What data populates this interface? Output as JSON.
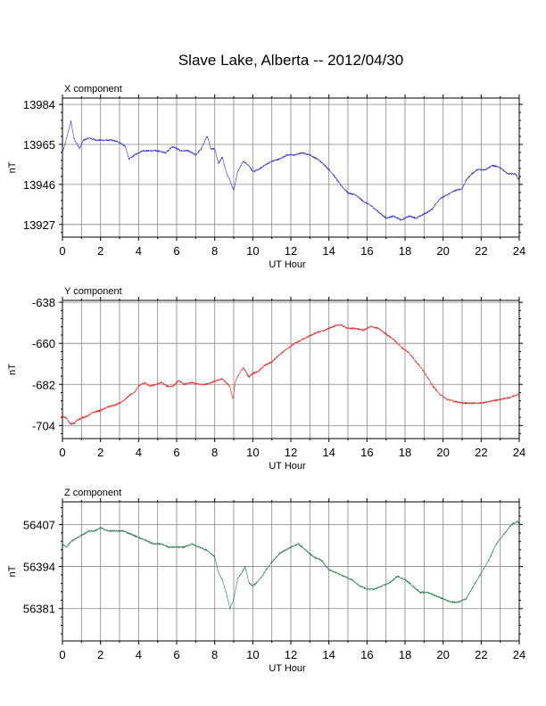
{
  "title": "Slave Lake, Alberta -- 2012/04/30",
  "colors": {
    "x": "#3333cc",
    "y": "#ee2222",
    "z": "#2e7d4f",
    "grid": "#888888"
  },
  "chart_data": [
    {
      "type": "line",
      "title": "X component",
      "xlabel": "UT Hour",
      "ylabel": "nT",
      "xlim": [
        0,
        24
      ],
      "ylim": [
        13921,
        13987
      ],
      "xticks": [
        0,
        2,
        4,
        6,
        8,
        10,
        12,
        14,
        16,
        18,
        20,
        22,
        24
      ],
      "yticks": [
        13927,
        13946,
        13965,
        13984
      ],
      "grid": true,
      "series": [
        {
          "color": "x",
          "x": [
            0,
            0.1,
            0.3,
            0.45,
            0.6,
            0.9,
            1.1,
            1.4,
            1.8,
            2.2,
            2.6,
            3.0,
            3.3,
            3.5,
            3.8,
            4.2,
            4.6,
            5.0,
            5.4,
            5.8,
            6.2,
            6.6,
            7.0,
            7.3,
            7.6,
            7.8,
            8.0,
            8.2,
            8.4,
            8.6,
            8.8,
            9.0,
            9.2,
            9.5,
            9.8,
            10.0,
            10.3,
            10.6,
            11.0,
            11.4,
            11.8,
            12.2,
            12.6,
            13.0,
            13.4,
            13.8,
            14.2,
            14.6,
            15.0,
            15.4,
            15.8,
            16.2,
            16.6,
            17.0,
            17.4,
            17.8,
            18.2,
            18.6,
            19.0,
            19.4,
            19.8,
            20.2,
            20.6,
            21.0,
            21.2,
            21.5,
            21.8,
            22.2,
            22.6,
            23.0,
            23.4,
            23.8,
            24.0
          ],
          "y": [
            13961,
            13964,
            13971,
            13976,
            13968,
            13963,
            13967,
            13968,
            13967,
            13967,
            13967,
            13966,
            13964,
            13958,
            13960,
            13962,
            13962,
            13962,
            13961,
            13964,
            13962,
            13962,
            13960,
            13963,
            13969,
            13963,
            13963,
            13956,
            13959,
            13952,
            13948,
            13943,
            13952,
            13957,
            13955,
            13952,
            13953,
            13955,
            13957,
            13958,
            13960,
            13960,
            13961,
            13960,
            13958,
            13955,
            13951,
            13946,
            13942,
            13941,
            13938,
            13936,
            13933,
            13930,
            13931,
            13929,
            13931,
            13930,
            13932,
            13934,
            13939,
            13941,
            13943,
            13944,
            13948,
            13951,
            13953,
            13953,
            13955,
            13954,
            13951,
            13951,
            13948
          ]
        }
      ]
    },
    {
      "type": "line",
      "title": "Y component",
      "xlabel": "UT Hour",
      "ylabel": "nT",
      "xlim": [
        0,
        24
      ],
      "ylim": [
        -711,
        -637
      ],
      "xticks": [
        0,
        2,
        4,
        6,
        8,
        10,
        12,
        14,
        16,
        18,
        20,
        22,
        24
      ],
      "yticks": [
        -704,
        -682,
        -660,
        -638
      ],
      "grid": true,
      "series": [
        {
          "color": "y",
          "x": [
            0,
            0.2,
            0.4,
            0.6,
            0.8,
            1.0,
            1.3,
            1.6,
            2.0,
            2.4,
            2.8,
            3.2,
            3.5,
            3.8,
            4.0,
            4.3,
            4.6,
            4.9,
            5.2,
            5.5,
            5.8,
            6.1,
            6.4,
            6.8,
            7.2,
            7.5,
            7.8,
            8.1,
            8.4,
            8.6,
            8.8,
            8.95,
            9.1,
            9.3,
            9.5,
            9.8,
            10.0,
            10.3,
            10.6,
            11.0,
            11.4,
            11.8,
            12.2,
            12.6,
            13.0,
            13.4,
            13.8,
            14.2,
            14.6,
            15.0,
            15.4,
            15.8,
            16.2,
            16.6,
            17.0,
            17.4,
            17.8,
            18.2,
            18.6,
            19.0,
            19.4,
            19.8,
            20.2,
            20.6,
            21.0,
            21.5,
            22.0,
            22.5,
            23.0,
            23.5,
            24.0
          ],
          "y": [
            -699,
            -700,
            -703,
            -703,
            -701,
            -700,
            -699,
            -697,
            -696,
            -694,
            -693,
            -691,
            -688,
            -686,
            -683,
            -681,
            -683,
            -682,
            -681,
            -683,
            -683,
            -680,
            -682,
            -681,
            -682,
            -682,
            -681,
            -680,
            -679,
            -681,
            -683,
            -690,
            -680,
            -676,
            -673,
            -678,
            -676,
            -675,
            -672,
            -670,
            -666,
            -663,
            -660,
            -658,
            -656,
            -654,
            -653,
            -651,
            -650,
            -652,
            -652,
            -653,
            -651,
            -652,
            -655,
            -658,
            -662,
            -665,
            -670,
            -675,
            -682,
            -687,
            -690,
            -691,
            -692,
            -692,
            -692,
            -691,
            -690,
            -689,
            -687
          ]
        }
      ]
    },
    {
      "type": "line",
      "title": "Z component",
      "xlabel": "UT Hour",
      "ylabel": "nT",
      "xlim": [
        0,
        24
      ],
      "ylim": [
        56371,
        56414
      ],
      "xticks": [
        0,
        2,
        4,
        6,
        8,
        10,
        12,
        14,
        16,
        18,
        20,
        22,
        24
      ],
      "yticks": [
        56381,
        56394,
        56407
      ],
      "grid": true,
      "series": [
        {
          "color": "z",
          "x": [
            0,
            0.2,
            0.5,
            0.8,
            1.1,
            1.4,
            1.7,
            2.0,
            2.4,
            2.8,
            3.2,
            3.6,
            4.0,
            4.4,
            4.8,
            5.2,
            5.6,
            6.0,
            6.4,
            6.8,
            7.2,
            7.6,
            8.0,
            8.2,
            8.4,
            8.6,
            8.8,
            9.0,
            9.2,
            9.4,
            9.6,
            9.8,
            10.0,
            10.2,
            10.5,
            10.8,
            11.1,
            11.4,
            11.7,
            12.0,
            12.4,
            12.8,
            13.2,
            13.6,
            14.0,
            14.4,
            14.8,
            15.2,
            15.6,
            16.0,
            16.4,
            16.8,
            17.2,
            17.6,
            18.0,
            18.4,
            18.8,
            19.2,
            19.6,
            20.0,
            20.4,
            20.8,
            21.2,
            21.6,
            22.0,
            22.4,
            22.8,
            23.2,
            23.6,
            23.9,
            24.0
          ],
          "y": [
            56401,
            56400,
            56402,
            56403,
            56404,
            56405,
            56405,
            56406,
            56405,
            56405,
            56405,
            56404,
            56403,
            56402,
            56401,
            56401,
            56400,
            56400,
            56400,
            56401,
            56400,
            56399,
            56397,
            56392,
            56390,
            56386,
            56381,
            56384,
            56390,
            56392,
            56394,
            56389,
            56388,
            56389,
            56391,
            56394,
            56396,
            56398,
            56399,
            56400,
            56401,
            56399,
            56397,
            56396,
            56393,
            56392,
            56391,
            56390,
            56388,
            56387,
            56387,
            56388,
            56389,
            56391,
            56390,
            56388,
            56386,
            56386,
            56385,
            56384,
            56383,
            56383,
            56384,
            56388,
            56392,
            56396,
            56401,
            56404,
            56407,
            56408,
            56407
          ]
        }
      ]
    }
  ]
}
